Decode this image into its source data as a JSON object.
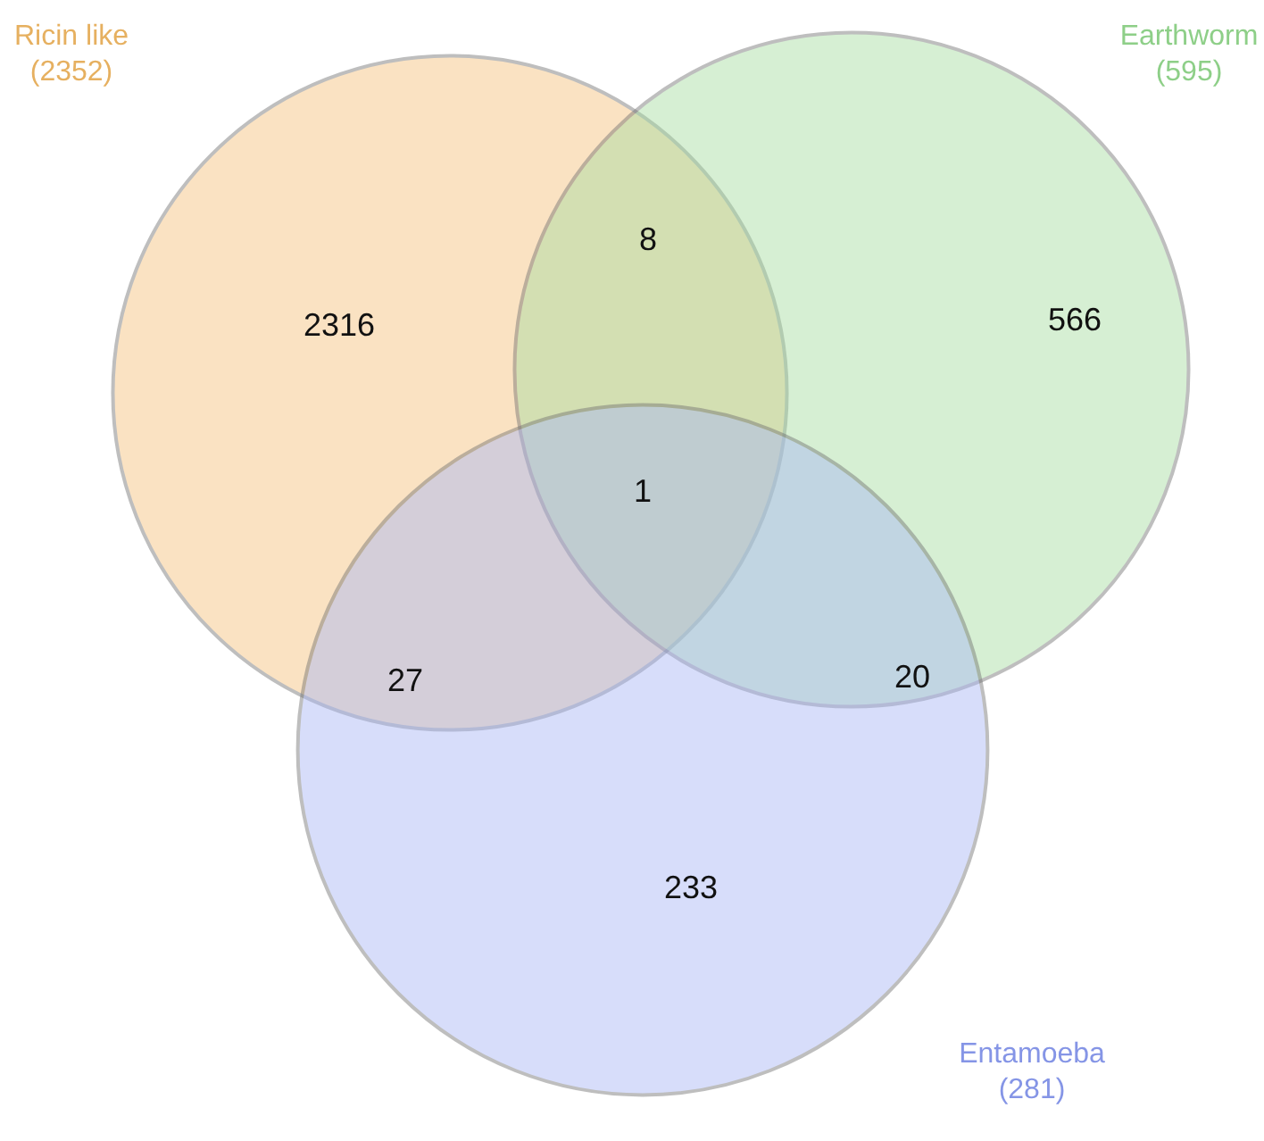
{
  "chart_data": {
    "type": "other",
    "categories": [
      "Ricin like",
      "Earthworm",
      "Entamoeba"
    ],
    "values": [
      2352,
      595,
      281
    ],
    "value_labels": [
      "(2352)",
      "(595)",
      "(281)"
    ],
    "colors": [
      "#f5c07a",
      "#a5dca0",
      "#a8b6f5"
    ],
    "annotations": [
      "2316",
      "8",
      "566",
      "1",
      "27",
      "20",
      "233"
    ]
  }
}
